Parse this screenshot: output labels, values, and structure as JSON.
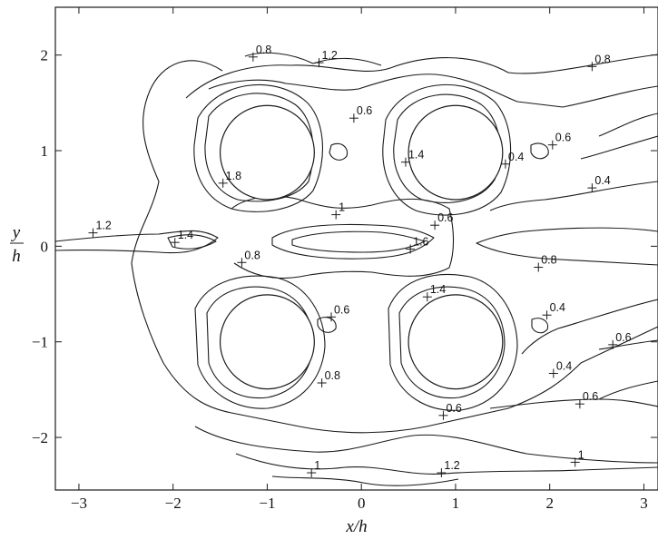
{
  "chart_data": {
    "type": "contour",
    "title": "",
    "xlabel": "x/h",
    "ylabel_num": "y",
    "ylabel_den": "h",
    "xlim": [
      -3.25,
      3.15
    ],
    "ylim": [
      -2.55,
      2.5
    ],
    "xticks": [
      -3,
      -2,
      -1,
      0,
      1,
      2,
      3
    ],
    "xtick_labels": [
      "−3",
      "−2",
      "−1",
      "0",
      "1",
      "2",
      "3"
    ],
    "yticks": [
      -2,
      -1,
      0,
      1,
      2
    ],
    "ytick_labels": [
      "−2",
      "−1",
      "0",
      "1",
      "2"
    ],
    "grid": false,
    "cylinders": [
      {
        "name": "top-left",
        "cx": -1.0,
        "cy": 0.98,
        "r": 0.5
      },
      {
        "name": "top-right",
        "cx": 1.0,
        "cy": 0.98,
        "r": 0.5
      },
      {
        "name": "bottom-left",
        "cx": -1.0,
        "cy": -1.0,
        "r": 0.5
      },
      {
        "name": "bottom-right",
        "cx": 1.0,
        "cy": -1.0,
        "r": 0.5
      }
    ],
    "contour_labels": [
      {
        "text": "0.8",
        "x": -1.15,
        "y": 1.98
      },
      {
        "text": "1.2",
        "x": -0.45,
        "y": 1.92
      },
      {
        "text": "0.6",
        "x": -0.08,
        "y": 1.34
      },
      {
        "text": "1.8",
        "x": -1.47,
        "y": 0.66
      },
      {
        "text": "1",
        "x": -0.27,
        "y": 0.33
      },
      {
        "text": "1.2",
        "x": -2.85,
        "y": 0.14
      },
      {
        "text": "1.4",
        "x": -1.98,
        "y": 0.04
      },
      {
        "text": "0.8",
        "x": -1.27,
        "y": -0.17
      },
      {
        "text": "1.4",
        "x": 0.47,
        "y": 0.88
      },
      {
        "text": "0.6",
        "x": 0.78,
        "y": 0.22
      },
      {
        "text": "1.6",
        "x": 0.52,
        "y": -0.03
      },
      {
        "text": "0.6",
        "x": 2.03,
        "y": 1.06
      },
      {
        "text": "0.4",
        "x": 1.53,
        "y": 0.86
      },
      {
        "text": "0.8",
        "x": 2.45,
        "y": 1.88
      },
      {
        "text": "0.4",
        "x": 2.45,
        "y": 0.61
      },
      {
        "text": "0.8",
        "x": 1.88,
        "y": -0.22
      },
      {
        "text": "1.4",
        "x": 0.7,
        "y": -0.53
      },
      {
        "text": "0.6",
        "x": -0.32,
        "y": -0.74
      },
      {
        "text": "0.4",
        "x": 1.97,
        "y": -0.72
      },
      {
        "text": "0.6",
        "x": 2.67,
        "y": -1.03
      },
      {
        "text": "0.4",
        "x": 2.04,
        "y": -1.33
      },
      {
        "text": "0.8",
        "x": -0.42,
        "y": -1.43
      },
      {
        "text": "0.6",
        "x": 0.87,
        "y": -1.77
      },
      {
        "text": "0.6",
        "x": 2.32,
        "y": -1.65
      },
      {
        "text": "1",
        "x": -0.53,
        "y": -2.37
      },
      {
        "text": "1.2",
        "x": 0.85,
        "y": -2.37
      },
      {
        "text": "1",
        "x": 2.27,
        "y": -2.26
      }
    ]
  }
}
